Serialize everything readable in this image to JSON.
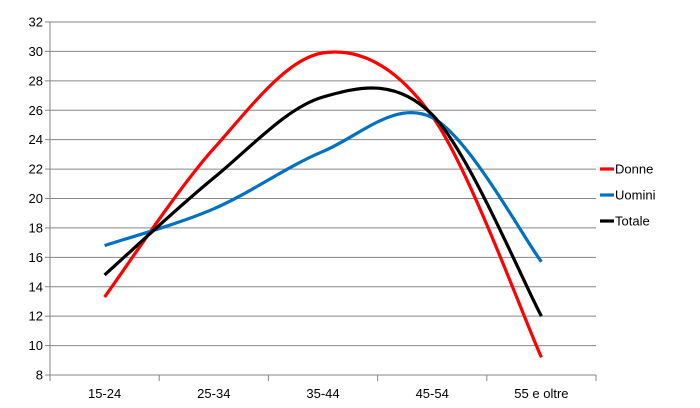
{
  "chart_data": {
    "type": "line",
    "title": "",
    "xlabel": "",
    "ylabel": "",
    "categories": [
      "15-24",
      "25-34",
      "35-44",
      "45-54",
      "55 e oltre"
    ],
    "ylim": [
      8,
      32
    ],
    "yticks": [
      8,
      10,
      12,
      14,
      16,
      18,
      20,
      22,
      24,
      26,
      28,
      30,
      32
    ],
    "grid": "horizontal",
    "legend_position": "right",
    "smooth": true,
    "series": [
      {
        "name": "Donne",
        "color": "#ff0000",
        "values": [
          13.3,
          23.4,
          29.9,
          25.6,
          9.2
        ]
      },
      {
        "name": "Uomini",
        "color": "#0070c0",
        "values": [
          16.8,
          19.3,
          23.2,
          25.5,
          15.7
        ]
      },
      {
        "name": "Totale",
        "color": "#000000",
        "values": [
          14.8,
          21.4,
          26.9,
          25.7,
          12.0
        ]
      }
    ]
  }
}
